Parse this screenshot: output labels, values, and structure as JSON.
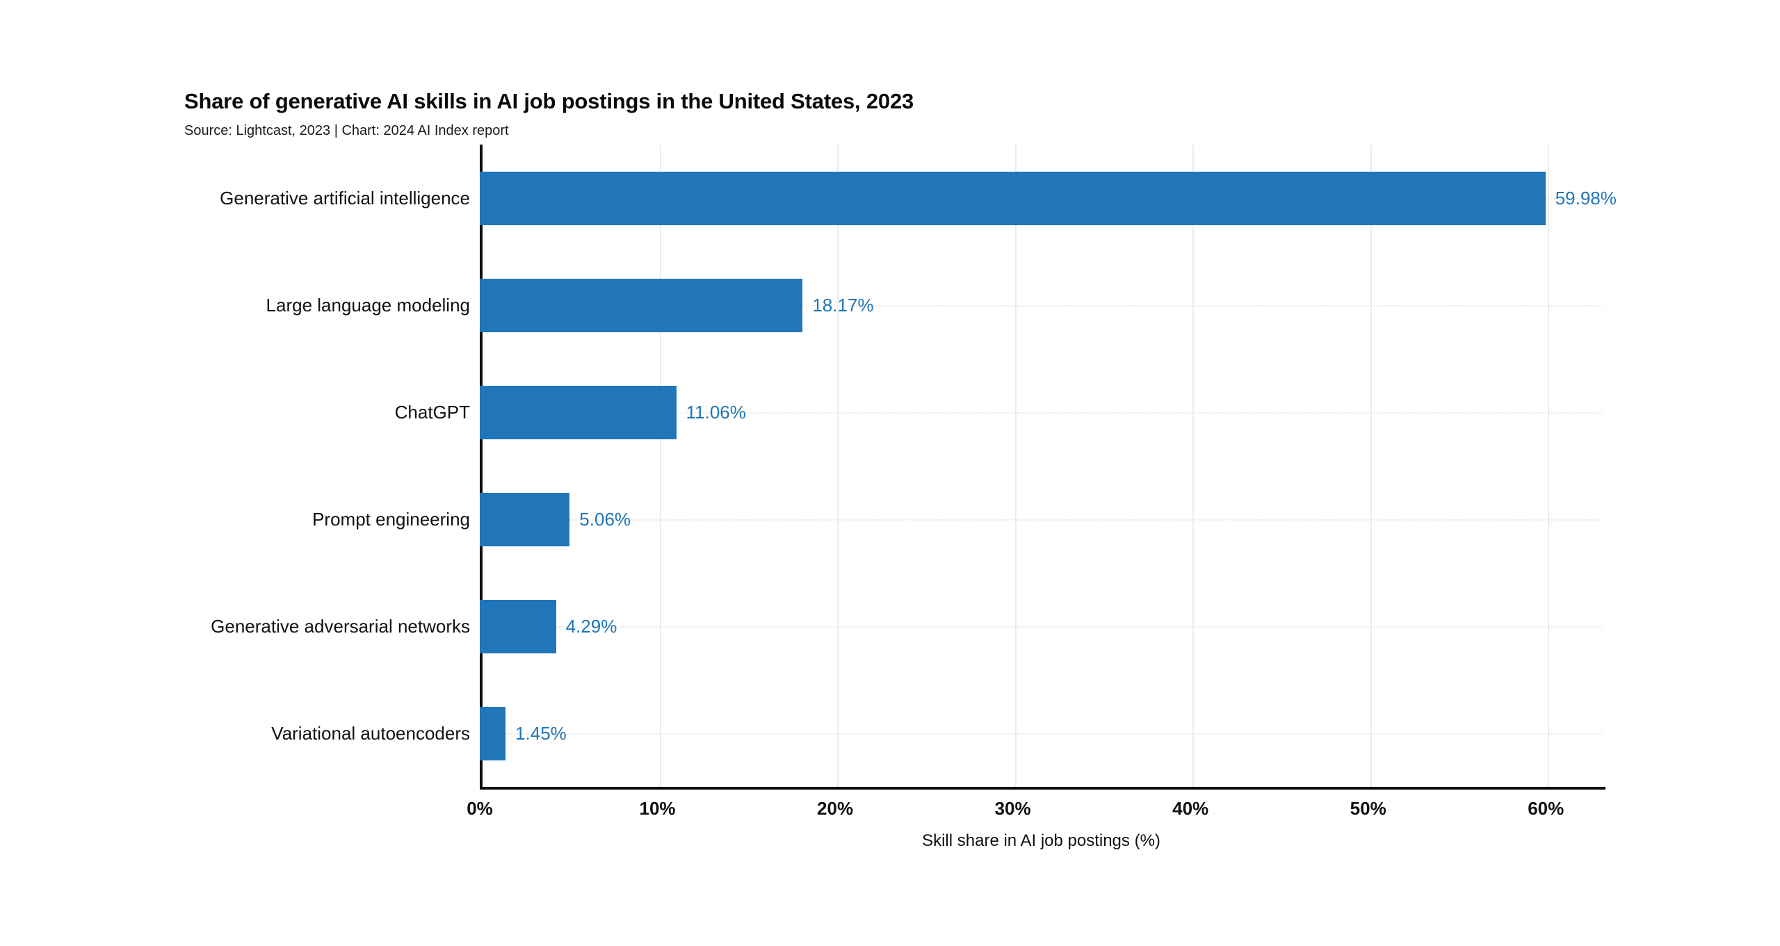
{
  "header": {
    "title": "Share of generative AI skills in AI job postings in the United States, 2023",
    "subtitle": "Source: Lightcast, 2023 | Chart: 2024 AI Index report"
  },
  "chart_data": {
    "type": "bar",
    "orientation": "horizontal",
    "title": "Share of generative AI skills in AI job postings in the United States, 2023",
    "subtitle": "Source: Lightcast, 2023 | Chart: 2024 AI Index report",
    "categories": [
      "Generative artificial intelligence",
      "Large language modeling",
      "ChatGPT",
      "Prompt engineering",
      "Generative adversarial networks",
      "Variational autoencoders"
    ],
    "values": [
      59.98,
      18.17,
      11.06,
      5.06,
      4.29,
      1.45
    ],
    "value_labels": [
      "59.98%",
      "18.17%",
      "11.06%",
      "5.06%",
      "4.29%",
      "1.45%"
    ],
    "xlabel": "Skill share in AI job postings (%)",
    "x_ticks": [
      "0%",
      "10%",
      "20%",
      "30%",
      "40%",
      "50%",
      "60%"
    ],
    "x_tick_values": [
      0,
      10,
      20,
      30,
      40,
      50,
      60
    ],
    "xlim": [
      0,
      63.2
    ],
    "bar_color": "#2076B8",
    "axis_color": "#111111",
    "grid": true,
    "legend": false
  }
}
